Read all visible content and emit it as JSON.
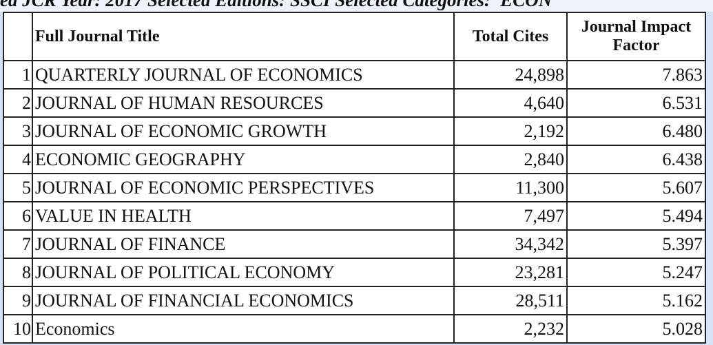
{
  "header": {
    "caption": "ed JCR Year: 2017 Selected Editions: SSCI Selected Categories: 'ECON"
  },
  "table": {
    "columns": [
      "Full Journal Title",
      "Total Cites",
      "Journal Impact Factor"
    ],
    "rows": [
      [
        "1",
        "QUARTERLY JOURNAL OF ECONOMICS",
        "24,898",
        "7.863"
      ],
      [
        "2",
        "JOURNAL OF HUMAN RESOURCES",
        "4,640",
        "6.531"
      ],
      [
        "3",
        "JOURNAL OF ECONOMIC GROWTH",
        "2,192",
        "6.480"
      ],
      [
        "4",
        "ECONOMIC GEOGRAPHY",
        "2,840",
        "6.438"
      ],
      [
        "5",
        "JOURNAL OF ECONOMIC PERSPECTIVES",
        "11,300",
        "5.607"
      ],
      [
        "6",
        "VALUE IN HEALTH",
        "7,497",
        "5.494"
      ],
      [
        "7",
        "JOURNAL OF FINANCE",
        "34,342",
        "5.397"
      ],
      [
        "8",
        "JOURNAL OF POLITICAL ECONOMY",
        "23,281",
        "5.247"
      ],
      [
        "9",
        "JOURNAL OF FINANCIAL ECONOMICS",
        "28,511",
        "5.162"
      ],
      [
        "10",
        "Economics",
        "2,232",
        "5.028"
      ]
    ]
  }
}
